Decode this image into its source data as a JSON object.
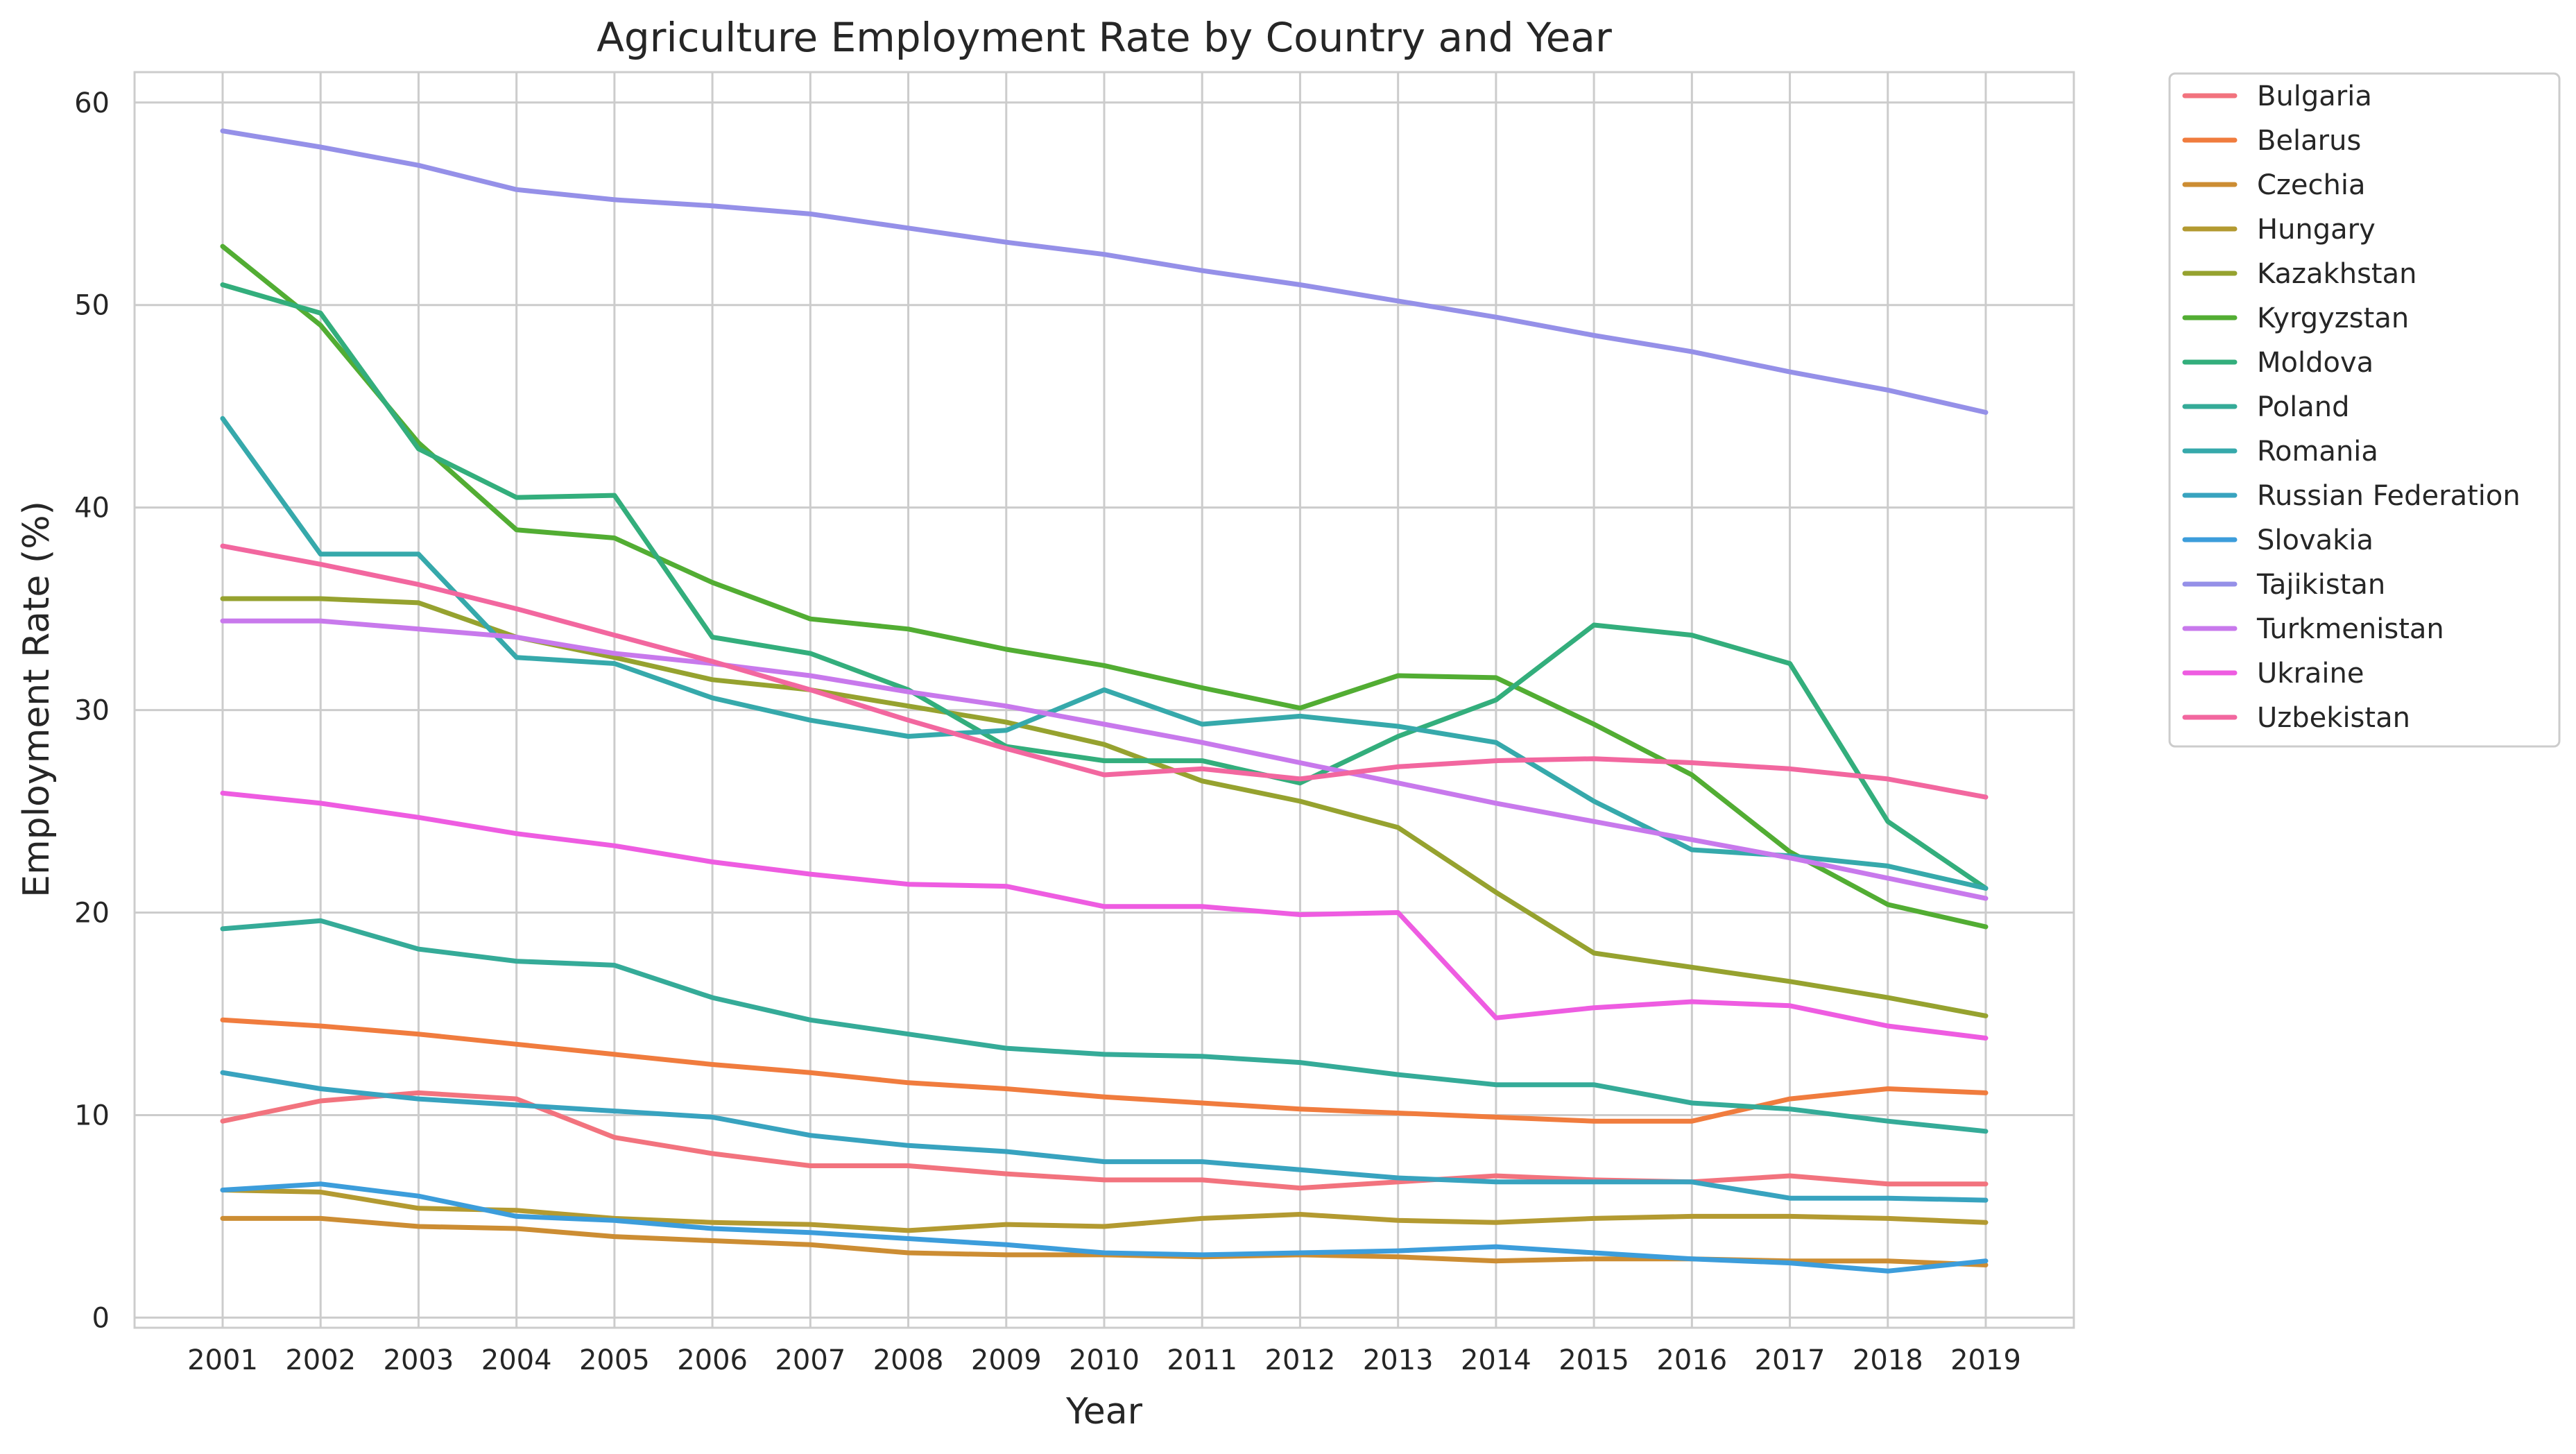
{
  "chart_data": {
    "type": "line",
    "title": "Agriculture Employment Rate by Country and Year",
    "xlabel": "Year",
    "ylabel": "Employment Rate (%)",
    "x": [
      2001,
      2002,
      2003,
      2004,
      2005,
      2006,
      2007,
      2008,
      2009,
      2010,
      2011,
      2012,
      2013,
      2014,
      2015,
      2016,
      2017,
      2018,
      2019
    ],
    "ylim": [
      -0.5,
      61.5
    ],
    "yticks": [
      0,
      10,
      20,
      30,
      40,
      50,
      60
    ],
    "grid": true,
    "legend_position": "outside-right",
    "series": [
      {
        "name": "Bulgaria",
        "color": "#f2737e",
        "values": [
          9.7,
          10.7,
          11.1,
          10.8,
          8.9,
          8.1,
          7.5,
          7.5,
          7.1,
          6.8,
          6.8,
          6.4,
          6.7,
          7.0,
          6.8,
          6.7,
          7.0,
          6.6,
          6.6
        ]
      },
      {
        "name": "Belarus",
        "color": "#f07c3e",
        "values": [
          14.7,
          14.4,
          14.0,
          13.5,
          13.0,
          12.5,
          12.1,
          11.6,
          11.3,
          10.9,
          10.6,
          10.3,
          10.1,
          9.9,
          9.7,
          9.7,
          10.8,
          11.3,
          11.1
        ]
      },
      {
        "name": "Czechia",
        "color": "#cc8d33",
        "values": [
          4.9,
          4.9,
          4.5,
          4.4,
          4.0,
          3.8,
          3.6,
          3.2,
          3.1,
          3.1,
          3.0,
          3.1,
          3.0,
          2.8,
          2.9,
          2.9,
          2.8,
          2.8,
          2.6
        ]
      },
      {
        "name": "Hungary",
        "color": "#b39a31",
        "values": [
          6.3,
          6.2,
          5.4,
          5.3,
          4.9,
          4.7,
          4.6,
          4.3,
          4.6,
          4.5,
          4.9,
          5.1,
          4.8,
          4.7,
          4.9,
          5.0,
          5.0,
          4.9,
          4.7
        ]
      },
      {
        "name": "Kazakhstan",
        "color": "#96a22f",
        "values": [
          35.5,
          35.5,
          35.3,
          33.6,
          32.6,
          31.5,
          31.0,
          30.2,
          29.4,
          28.3,
          26.5,
          25.5,
          24.2,
          21.0,
          18.0,
          17.3,
          16.6,
          15.8,
          14.9
        ]
      },
      {
        "name": "Kyrgyzstan",
        "color": "#52ad33",
        "values": [
          52.9,
          49.0,
          43.2,
          38.9,
          38.5,
          36.3,
          34.5,
          34.0,
          33.0,
          32.2,
          31.1,
          30.1,
          31.7,
          31.6,
          29.3,
          26.8,
          23.0,
          20.4,
          19.3
        ]
      },
      {
        "name": "Moldova",
        "color": "#33ae7c",
        "values": [
          51.0,
          49.6,
          42.9,
          40.5,
          40.6,
          33.6,
          32.8,
          31.0,
          28.2,
          27.5,
          27.5,
          26.4,
          28.7,
          30.5,
          34.2,
          33.7,
          32.3,
          24.5,
          21.2
        ]
      },
      {
        "name": "Poland",
        "color": "#35ab98",
        "values": [
          19.2,
          19.6,
          18.2,
          17.6,
          17.4,
          15.8,
          14.7,
          14.0,
          13.3,
          13.0,
          12.9,
          12.6,
          12.0,
          11.5,
          11.5,
          10.6,
          10.3,
          9.7,
          9.2
        ]
      },
      {
        "name": "Romania",
        "color": "#36a9ab",
        "values": [
          44.4,
          37.7,
          37.7,
          32.6,
          32.3,
          30.6,
          29.5,
          28.7,
          29.0,
          31.0,
          29.3,
          29.7,
          29.2,
          28.4,
          25.5,
          23.1,
          22.8,
          22.3,
          21.2
        ]
      },
      {
        "name": "Russian Federation",
        "color": "#38a3bf",
        "values": [
          12.1,
          11.3,
          10.8,
          10.5,
          10.2,
          9.9,
          9.0,
          8.5,
          8.2,
          7.7,
          7.7,
          7.3,
          6.9,
          6.7,
          6.7,
          6.7,
          5.9,
          5.9,
          5.8
        ]
      },
      {
        "name": "Slovakia",
        "color": "#3c9ddb",
        "values": [
          6.3,
          6.6,
          6.0,
          5.0,
          4.8,
          4.4,
          4.2,
          3.9,
          3.6,
          3.2,
          3.1,
          3.2,
          3.3,
          3.5,
          3.2,
          2.9,
          2.7,
          2.3,
          2.8
        ]
      },
      {
        "name": "Tajikistan",
        "color": "#9590e8",
        "values": [
          58.6,
          57.8,
          56.9,
          55.7,
          55.2,
          54.9,
          54.5,
          53.8,
          53.1,
          52.5,
          51.7,
          51.0,
          50.2,
          49.4,
          48.5,
          47.7,
          46.7,
          45.8,
          44.7
        ]
      },
      {
        "name": "Turkmenistan",
        "color": "#c879ec",
        "values": [
          34.4,
          34.4,
          34.0,
          33.6,
          32.8,
          32.3,
          31.7,
          30.9,
          30.2,
          29.3,
          28.4,
          27.4,
          26.4,
          25.4,
          24.5,
          23.6,
          22.7,
          21.7,
          20.7
        ]
      },
      {
        "name": "Ukraine",
        "color": "#ee5ce1",
        "values": [
          25.9,
          25.4,
          24.7,
          23.9,
          23.3,
          22.5,
          21.9,
          21.4,
          21.3,
          20.3,
          20.3,
          19.9,
          20.0,
          14.8,
          15.3,
          15.6,
          15.4,
          14.4,
          13.8
        ]
      },
      {
        "name": "Uzbekistan",
        "color": "#f2679f",
        "values": [
          38.1,
          37.2,
          36.2,
          35.0,
          33.7,
          32.4,
          31.0,
          29.5,
          28.1,
          26.8,
          27.1,
          26.6,
          27.2,
          27.5,
          27.6,
          27.4,
          27.1,
          26.6,
          25.7
        ]
      }
    ]
  }
}
